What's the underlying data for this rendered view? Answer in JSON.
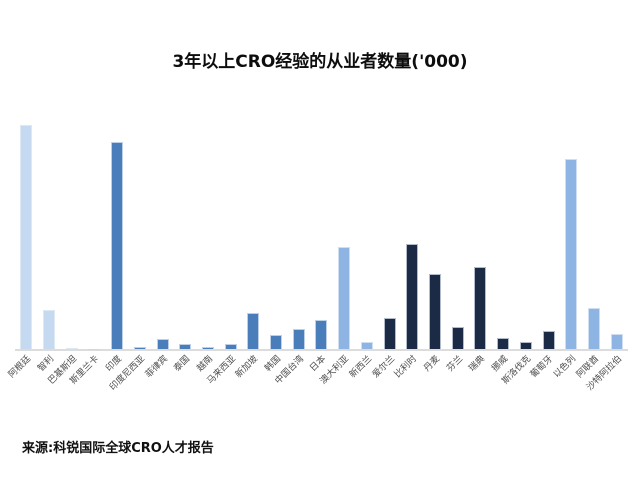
{
  "chart_data": {
    "type": "bar",
    "title": "3年以上CRO经验的从业者数量('000)",
    "source": "来源:科锐国际全球CRO人才报告",
    "xlabel": "",
    "ylabel": "",
    "ylim": [
      0,
      24
    ],
    "grid": false,
    "legend": "none",
    "x_label_rotation_deg": -45,
    "categories": [
      "阿根廷",
      "智利",
      "巴基斯坦",
      "斯里兰卡",
      "印度",
      "印度尼西亚",
      "菲律宾",
      "泰国",
      "越南",
      "马来西亚",
      "新加坡",
      "韩国",
      "中国台湾",
      "日本",
      "澳大利亚",
      "新西兰",
      "爱尔兰",
      "比利时",
      "丹麦",
      "芬兰",
      "瑞典",
      "挪威",
      "斯洛伐克",
      "葡萄牙",
      "以色列",
      "阿联酋",
      "沙特阿拉伯"
    ],
    "values": [
      22.4,
      3.9,
      0.15,
      0.05,
      20.7,
      0.2,
      1.0,
      0.5,
      0.2,
      0.55,
      3.6,
      1.4,
      2.0,
      2.9,
      10.2,
      0.7,
      3.1,
      10.5,
      7.5,
      2.2,
      8.2,
      1.1,
      0.7,
      1.8,
      19.0,
      4.1,
      1.5
    ],
    "bar_color_groups": [
      "light",
      "light",
      "light",
      "light",
      "medium",
      "medium",
      "medium",
      "medium",
      "medium",
      "medium",
      "medium",
      "medium",
      "medium",
      "medium",
      "cornflower",
      "cornflower",
      "navy",
      "navy",
      "navy",
      "navy",
      "navy",
      "navy",
      "navy",
      "navy",
      "cornflower",
      "cornflower",
      "cornflower"
    ],
    "palette": {
      "light": "#c5d9f1",
      "medium": "#4a7ebb",
      "cornflower": "#8eb4e3",
      "navy": "#1b2b45"
    },
    "axis_line_color": "#dcdcdc",
    "label_color": "#4d4d4d"
  }
}
